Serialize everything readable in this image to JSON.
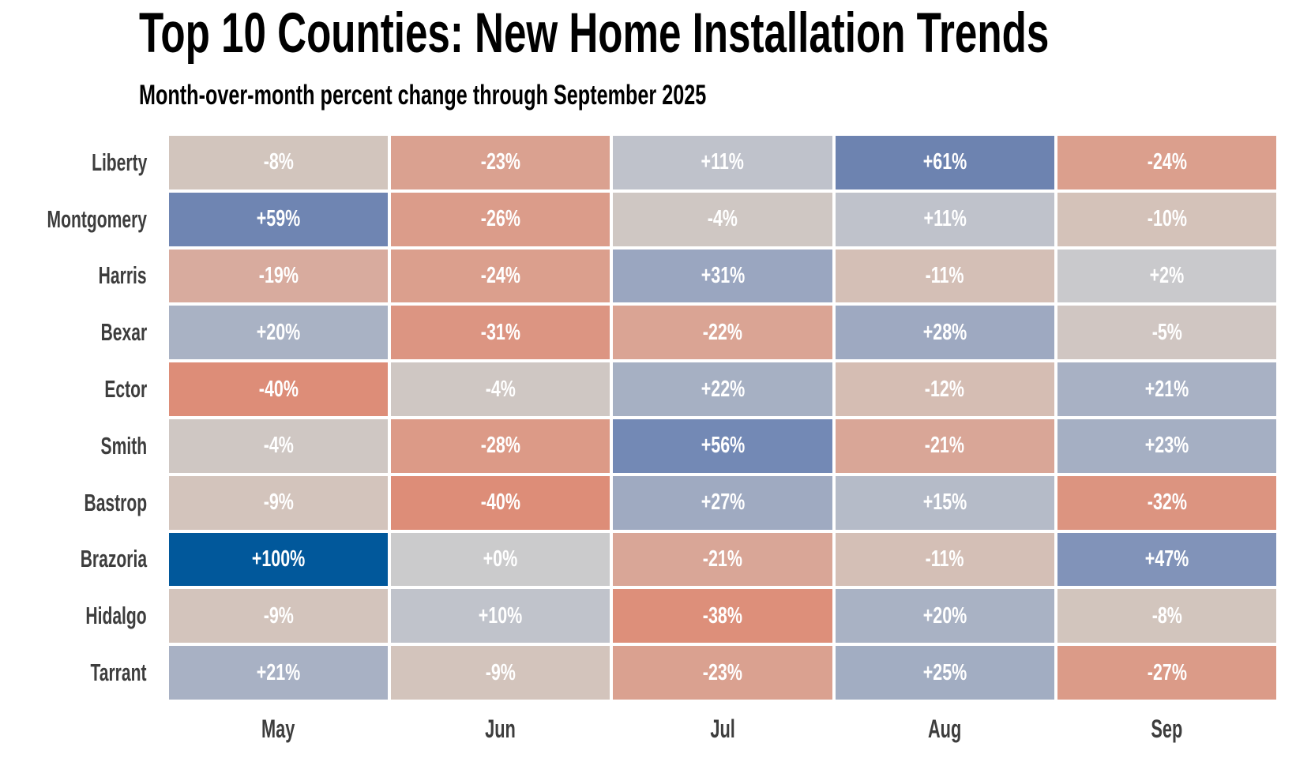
{
  "chart_data": {
    "type": "heatmap",
    "title": "Top 10 Counties: New Home Installation Trends",
    "subtitle": "Month-over-month percent change through September 2025",
    "columns": [
      "May",
      "Jun",
      "Jul",
      "Aug",
      "Sep"
    ],
    "rows": [
      "Liberty",
      "Montgomery",
      "Harris",
      "Bexar",
      "Ector",
      "Smith",
      "Bastrop",
      "Brazoria",
      "Hidalgo",
      "Tarrant"
    ],
    "values": [
      [
        -8,
        -23,
        11,
        61,
        -24
      ],
      [
        59,
        -26,
        -4,
        11,
        -10
      ],
      [
        -19,
        -24,
        31,
        -11,
        2
      ],
      [
        20,
        -31,
        -22,
        28,
        -5
      ],
      [
        -40,
        -4,
        22,
        -12,
        21
      ],
      [
        -4,
        -28,
        56,
        -21,
        23
      ],
      [
        -9,
        -40,
        27,
        15,
        -32
      ],
      [
        100,
        0,
        -21,
        -11,
        47
      ],
      [
        -9,
        10,
        -38,
        20,
        -8
      ],
      [
        21,
        -9,
        -23,
        25,
        -27
      ]
    ],
    "cell_labels": [
      [
        "-8%",
        "-23%",
        "+11%",
        "+61%",
        "-24%"
      ],
      [
        "+59%",
        "-26%",
        "-4%",
        "+11%",
        "-10%"
      ],
      [
        "-19%",
        "-24%",
        "+31%",
        "-11%",
        "+2%"
      ],
      [
        "+20%",
        "-31%",
        "-22%",
        "+28%",
        "-5%"
      ],
      [
        "-40%",
        "-4%",
        "+22%",
        "-12%",
        "+21%"
      ],
      [
        "-4%",
        "-28%",
        "+56%",
        "-21%",
        "+23%"
      ],
      [
        "-9%",
        "-40%",
        "+27%",
        "+15%",
        "-32%"
      ],
      [
        "+100%",
        "+0%",
        "-21%",
        "-11%",
        "+47%"
      ],
      [
        "-9%",
        "+10%",
        "-38%",
        "+20%",
        "-8%"
      ],
      [
        "+21%",
        "-9%",
        "-23%",
        "+25%",
        "-27%"
      ]
    ],
    "value_unit": "percent",
    "value_range": [
      -40,
      100
    ],
    "grid": "off",
    "legend": "none",
    "color_scale": {
      "midpoint_color": "#cbcbcc",
      "positive_stops": [
        [
          0,
          "#cbcbcc"
        ],
        [
          11,
          "#bfc2cb"
        ],
        [
          20,
          "#a9b2c4"
        ],
        [
          31,
          "#9aa6c0"
        ],
        [
          56,
          "#7389b5"
        ],
        [
          61,
          "#6d83b0"
        ],
        [
          100,
          "#01589b"
        ]
      ],
      "negative_stops": [
        [
          0,
          "#cbcbcc"
        ],
        [
          4,
          "#cfc7c3"
        ],
        [
          9,
          "#d3c4bc"
        ],
        [
          19,
          "#d8ab9e"
        ],
        [
          24,
          "#db9f8d"
        ],
        [
          32,
          "#dc9480"
        ],
        [
          40,
          "#dd8d78"
        ]
      ],
      "cell_text_color": "#ffffff"
    },
    "axis_label_color": "#3d3d3d",
    "title_color": "#000000"
  }
}
